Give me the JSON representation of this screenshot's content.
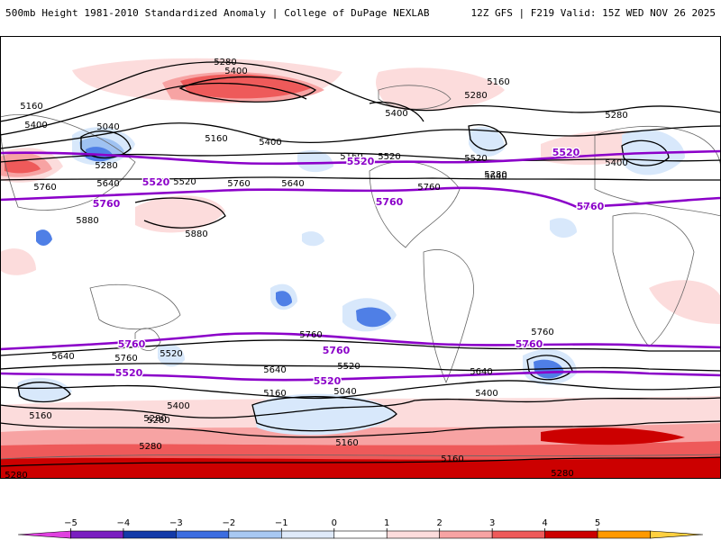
{
  "header": {
    "left_title": "500mb Height 1981-2010 Standardized Anomaly | College of DuPage NEXLAB",
    "right_title": "12Z GFS | F219 Valid: 15Z WED NOV 26 2025"
  },
  "colors": {
    "pos1": "#fcdcdc",
    "pos2": "#f7a3a3",
    "pos3": "#ee5a5a",
    "pos4": "#cc0000",
    "neg1": "#d8e8fb",
    "neg2": "#9fc2f2",
    "neg3": "#4f7fe6",
    "neg4": "#2a45c8",
    "contour": "#000000",
    "highlight": "#8b00c9",
    "land": "#666666"
  },
  "contour_labels": [
    {
      "text": "5280"
    },
    {
      "text": "5400"
    },
    {
      "text": "5160"
    },
    {
      "text": "5280"
    },
    {
      "text": "5160"
    },
    {
      "text": "5400"
    },
    {
      "text": "5040"
    },
    {
      "text": "5160"
    },
    {
      "text": "5400"
    },
    {
      "text": "5280"
    },
    {
      "text": "5400"
    },
    {
      "text": "5280"
    },
    {
      "text": "5160"
    },
    {
      "text": "5520"
    },
    {
      "text": "5280"
    },
    {
      "text": "5400"
    },
    {
      "text": "5640"
    },
    {
      "text": "5520"
    },
    {
      "text": "5760"
    },
    {
      "text": "5640"
    },
    {
      "text": "5520"
    },
    {
      "text": "5640"
    },
    {
      "text": "5760"
    },
    {
      "text": "5760"
    },
    {
      "text": "5880"
    },
    {
      "text": "5880"
    },
    {
      "text": "5640"
    },
    {
      "text": "5760"
    },
    {
      "text": "5520"
    },
    {
      "text": "5640"
    },
    {
      "text": "5520"
    },
    {
      "text": "5760"
    },
    {
      "text": "5640"
    },
    {
      "text": "5400"
    },
    {
      "text": "5280"
    },
    {
      "text": "5160"
    },
    {
      "text": "5400"
    },
    {
      "text": "5040"
    },
    {
      "text": "5160"
    },
    {
      "text": "5280"
    },
    {
      "text": "5280"
    },
    {
      "text": "5160"
    },
    {
      "text": "5160"
    },
    {
      "text": "5280"
    },
    {
      "text": "5280"
    },
    {
      "text": "5760"
    }
  ],
  "highlight_labels": [
    {
      "text": "5520"
    },
    {
      "text": "5520"
    },
    {
      "text": "5520"
    },
    {
      "text": "5760"
    },
    {
      "text": "5760"
    },
    {
      "text": "5760"
    },
    {
      "text": "5760"
    },
    {
      "text": "5760"
    },
    {
      "text": "5760"
    },
    {
      "text": "5520"
    },
    {
      "text": "5520"
    }
  ],
  "colorbar": {
    "ticks": [
      "−5",
      "−4",
      "−3",
      "−2",
      "−1",
      "0",
      "1",
      "2",
      "3",
      "4",
      "5"
    ],
    "fills": [
      "#e040e0",
      "#7a1ec0",
      "#123aa8",
      "#3c6de0",
      "#a8c8f2",
      "#dfeaf9",
      "#ffffff",
      "#fcdcdc",
      "#f7a3a3",
      "#ee5a5a",
      "#cc0000",
      "#ff9900",
      "#ffd040"
    ]
  }
}
